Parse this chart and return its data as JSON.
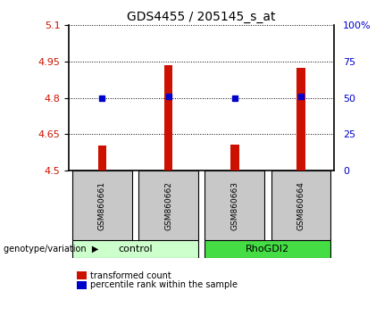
{
  "title": "GDS4455 / 205145_s_at",
  "samples": [
    "GSM860661",
    "GSM860662",
    "GSM860663",
    "GSM860664"
  ],
  "groups": [
    "control",
    "control",
    "RhoGDI2",
    "RhoGDI2"
  ],
  "red_values": [
    4.605,
    4.935,
    4.608,
    4.925
  ],
  "blue_values": [
    4.798,
    4.807,
    4.798,
    4.808
  ],
  "ylim_left": [
    4.5,
    5.1
  ],
  "ylim_right": [
    0,
    100
  ],
  "yticks_left": [
    4.5,
    4.65,
    4.8,
    4.95,
    5.1
  ],
  "yticks_right": [
    0,
    25,
    50,
    75,
    100
  ],
  "ytick_labels_left": [
    "4.5",
    "4.65",
    "4.8",
    "4.95",
    "5.1"
  ],
  "ytick_labels_right": [
    "0",
    "25",
    "50",
    "75",
    "100%"
  ],
  "group_colors": {
    "control": "#ccffcc",
    "RhoGDI2": "#44dd44"
  },
  "bar_color": "#cc1100",
  "dot_color": "#0000cc",
  "sample_cell_color": "#c8c8c8",
  "legend_red": "transformed count",
  "legend_blue": "percentile rank within the sample",
  "genotype_label": "genotype/variation"
}
